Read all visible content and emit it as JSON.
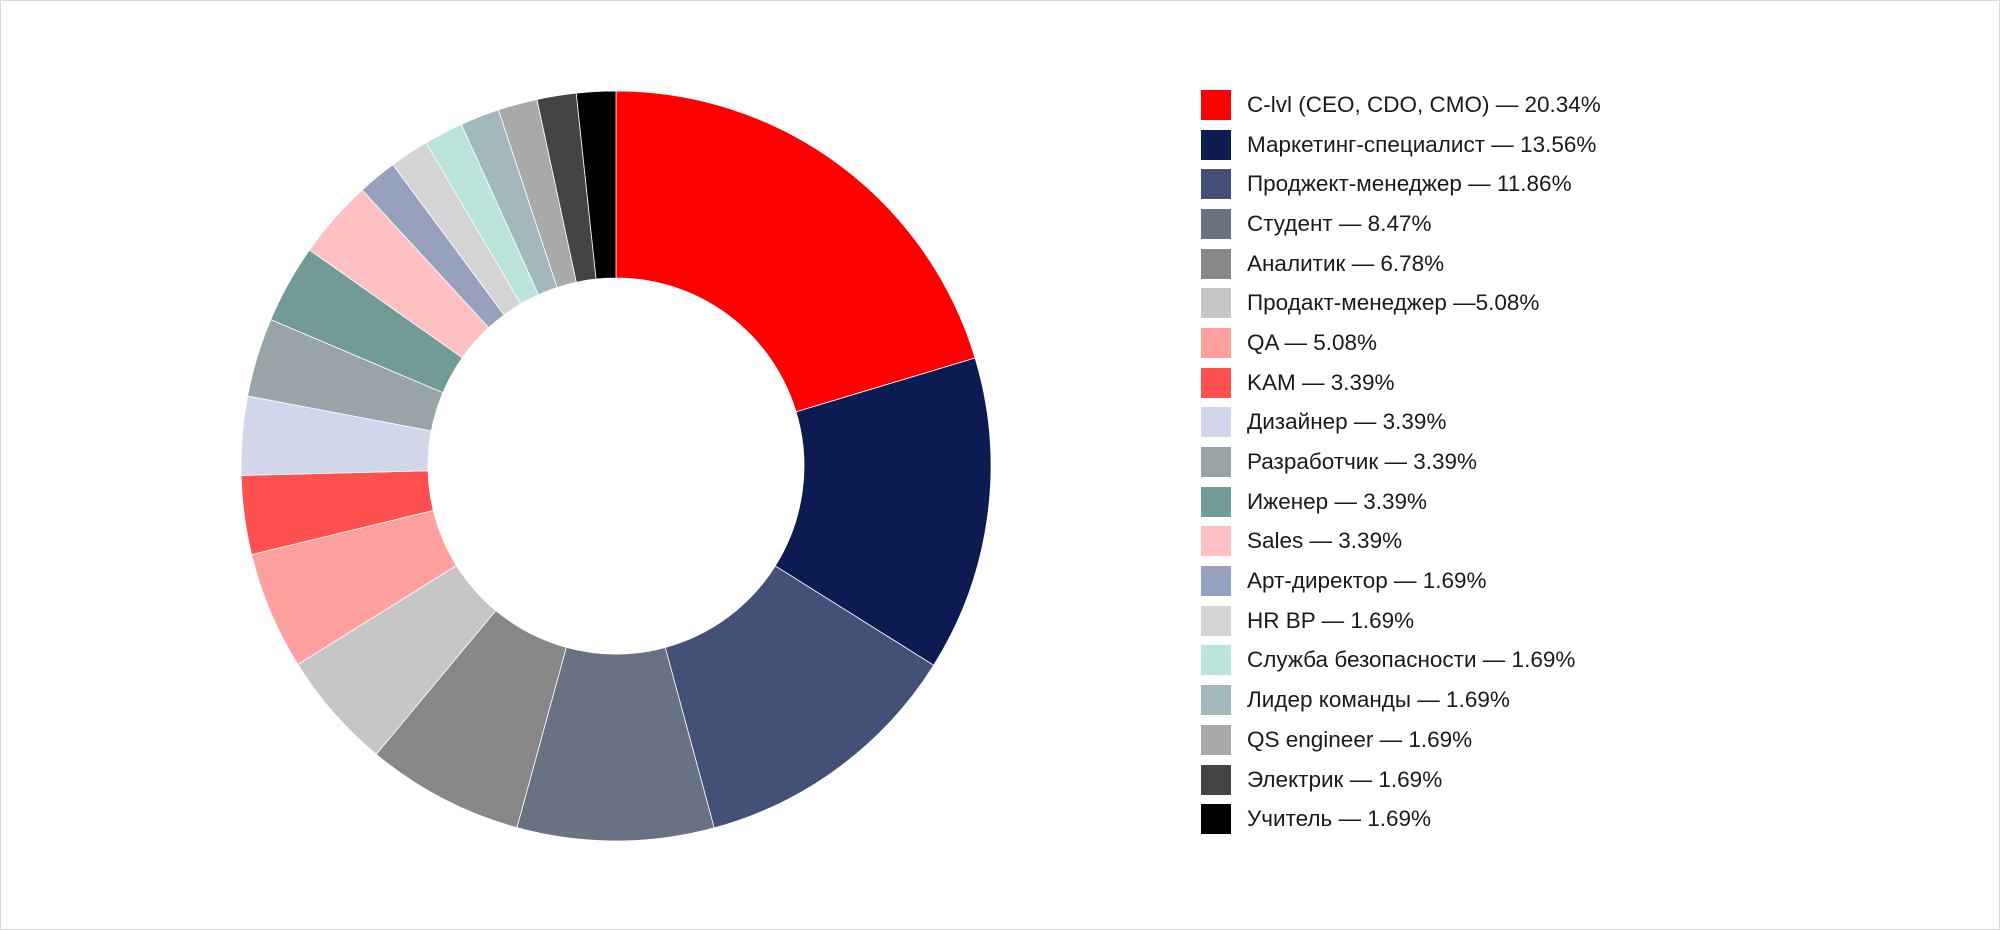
{
  "chart_data": {
    "type": "pie",
    "variant": "donut",
    "title": "",
    "legend_position": "right",
    "slices": [
      {
        "label": "C-lvl (CEO, CDO, CMO) — 20.34%",
        "value": 20.34,
        "color": "#ff0000"
      },
      {
        "label": "Маркетинг-специалист — 13.56%",
        "value": 13.56,
        "color": "#0c1c52"
      },
      {
        "label": "Проджект-менеджер — 11.86%",
        "value": 11.86,
        "color": "#435078"
      },
      {
        "label": "Студент — 8.47%",
        "value": 8.47,
        "color": "#697283"
      },
      {
        "label": "Аналитик — 6.78%",
        "value": 6.78,
        "color": "#878787"
      },
      {
        "label": "Продакт-менеджер —5.08%",
        "value": 5.08,
        "color": "#c6c6c6"
      },
      {
        "label": "QA — 5.08%",
        "value": 5.08,
        "color": "#ffa09e"
      },
      {
        "label": "KAM — 3.39%",
        "value": 3.39,
        "color": "#ff5050"
      },
      {
        "label": "Дизайнер — 3.39%",
        "value": 3.39,
        "color": "#d1d6eb"
      },
      {
        "label": "Разработчик — 3.39%",
        "value": 3.39,
        "color": "#98a4a8"
      },
      {
        "label": "Иженер — 3.39%",
        "value": 3.39,
        "color": "#729b98"
      },
      {
        "label": "Sales — 3.39%",
        "value": 3.39,
        "color": "#ffc0c1"
      },
      {
        "label": "Арт-директор — 1.69%",
        "value": 1.69,
        "color": "#97a1bd"
      },
      {
        "label": "HR BP — 1.69%",
        "value": 1.69,
        "color": "#d4d4d4"
      },
      {
        "label": "Служба безопасности — 1.69%",
        "value": 1.69,
        "color": "#bbe5dc"
      },
      {
        "label": "Лидер команды — 1.69%",
        "value": 1.69,
        "color": "#a3b8bc"
      },
      {
        "label": "QS engineer — 1.69%",
        "value": 1.69,
        "color": "#aaa9a9"
      },
      {
        "label": "Электрик — 1.69%",
        "value": 1.69,
        "color": "#444444"
      },
      {
        "label": "Учитель — 1.69%",
        "value": 1.69,
        "color": "#000000"
      }
    ]
  }
}
